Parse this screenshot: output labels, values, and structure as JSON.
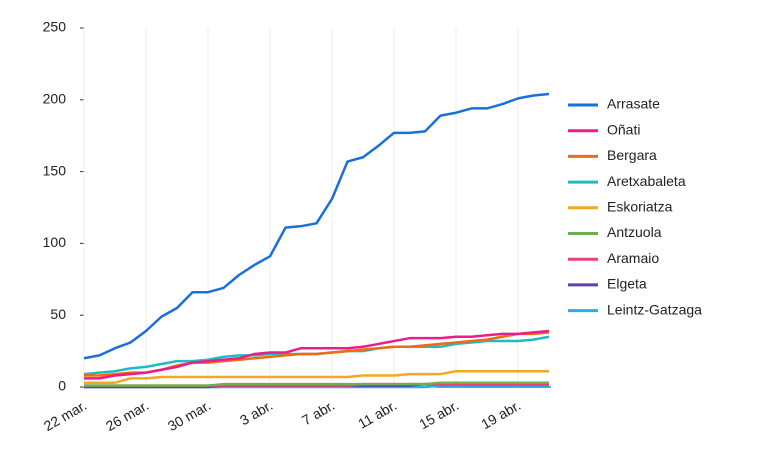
{
  "chart_data": {
    "type": "line",
    "categories": [
      "22 mar.",
      null,
      null,
      null,
      "26 mar.",
      null,
      null,
      null,
      "30 mar.",
      null,
      null,
      null,
      "3 abr.",
      null,
      null,
      null,
      "7 abr.",
      null,
      null,
      null,
      "11 abr.",
      null,
      null,
      null,
      "15 abr.",
      null,
      null,
      null,
      "19 abr.",
      null,
      null
    ],
    "ylim": [
      0,
      250
    ],
    "yticks": [
      0,
      50,
      100,
      150,
      200,
      250
    ],
    "legend": "right",
    "series": [
      {
        "name": "Arrasate",
        "color": "#1a6fdb",
        "values": [
          20,
          22,
          27,
          31,
          39,
          49,
          55,
          66,
          66,
          69,
          78,
          85,
          91,
          111,
          112,
          114,
          131,
          157,
          160,
          168,
          177,
          177,
          178,
          189,
          191,
          194,
          194,
          197,
          201,
          203,
          204
        ]
      },
      {
        "name": "Oñati",
        "color": "#e91e8c",
        "values": [
          6,
          6,
          8,
          9,
          10,
          12,
          14,
          17,
          18,
          19,
          20,
          23,
          24,
          24,
          27,
          27,
          27,
          27,
          28,
          30,
          32,
          34,
          34,
          34,
          35,
          35,
          36,
          37,
          37,
          38,
          39
        ]
      },
      {
        "name": "Bergara",
        "color": "#f26a10",
        "values": [
          8,
          8,
          9,
          10,
          10,
          12,
          15,
          17,
          17,
          18,
          19,
          20,
          21,
          22,
          23,
          23,
          24,
          25,
          26,
          27,
          28,
          28,
          29,
          30,
          31,
          32,
          33,
          35,
          37,
          37,
          38
        ]
      },
      {
        "name": "Aretxabaleta",
        "color": "#1dbcc4",
        "values": [
          9,
          10,
          11,
          13,
          14,
          16,
          18,
          18,
          19,
          21,
          22,
          22,
          23,
          23,
          23,
          23,
          24,
          25,
          25,
          27,
          28,
          28,
          28,
          28,
          30,
          31,
          32,
          32,
          32,
          33,
          35
        ]
      },
      {
        "name": "Eskoriatza",
        "color": "#f5a623",
        "values": [
          3,
          3,
          3,
          6,
          6,
          7,
          7,
          7,
          7,
          7,
          7,
          7,
          7,
          7,
          7,
          7,
          7,
          7,
          8,
          8,
          8,
          9,
          9,
          9,
          11,
          11,
          11,
          11,
          11,
          11,
          11
        ]
      },
      {
        "name": "Antzuola",
        "color": "#6ab04c",
        "values": [
          1,
          1,
          1,
          1,
          1,
          1,
          1,
          1,
          1,
          2,
          2,
          2,
          2,
          2,
          2,
          2,
          2,
          2,
          2,
          2,
          2,
          2,
          2,
          3,
          3,
          3,
          3,
          3,
          3,
          3,
          3
        ]
      },
      {
        "name": "Aramaio",
        "color": "#e8407a",
        "values": [
          1,
          1,
          1,
          1,
          1,
          1,
          1,
          1,
          1,
          1,
          1,
          1,
          1,
          1,
          1,
          1,
          1,
          1,
          2,
          2,
          2,
          2,
          2,
          2,
          2,
          2,
          2,
          2,
          2,
          2,
          2
        ]
      },
      {
        "name": "Elgeta",
        "color": "#5b3fb0",
        "values": [
          0,
          0,
          0,
          0,
          0,
          0,
          0,
          0,
          0,
          1,
          1,
          1,
          1,
          1,
          1,
          1,
          1,
          1,
          1,
          1,
          1,
          1,
          2,
          2,
          2,
          2,
          2,
          2,
          2,
          2,
          2
        ]
      },
      {
        "name": "Leintz-Gatzaga",
        "color": "#2aaee8",
        "values": [
          0,
          0,
          0,
          0,
          0,
          0,
          0,
          0,
          0,
          0,
          0,
          0,
          0,
          0,
          0,
          0,
          0,
          0,
          0,
          0,
          0,
          0,
          0,
          1,
          1,
          1,
          1,
          1,
          1,
          1,
          1
        ]
      }
    ]
  }
}
